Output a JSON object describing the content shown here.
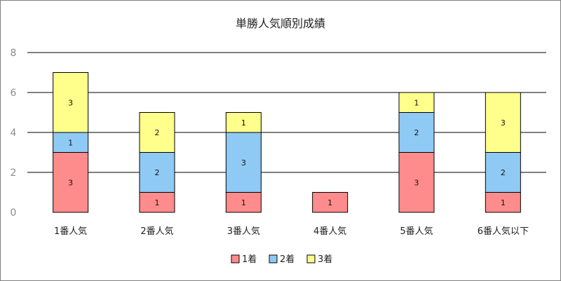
{
  "chart_data": {
    "type": "bar",
    "stacked": true,
    "title": "単勝人気順別成績",
    "categories": [
      "1番人気",
      "2番人気",
      "3番人気",
      "4番人気",
      "5番人気",
      "6番人気以下"
    ],
    "series": [
      {
        "name": "1着",
        "color": "#ff8c8c",
        "values": [
          3,
          1,
          1,
          1,
          3,
          1
        ]
      },
      {
        "name": "2着",
        "color": "#8fcaf5",
        "values": [
          1,
          2,
          3,
          0,
          2,
          2
        ]
      },
      {
        "name": "3着",
        "color": "#ffff8c",
        "values": [
          3,
          2,
          1,
          0,
          1,
          3
        ]
      }
    ],
    "yticks": [
      0,
      2,
      4,
      6,
      8
    ],
    "ylim": [
      0,
      8
    ],
    "grid": true,
    "legend": "bottom",
    "xlabel": "",
    "ylabel": ""
  }
}
